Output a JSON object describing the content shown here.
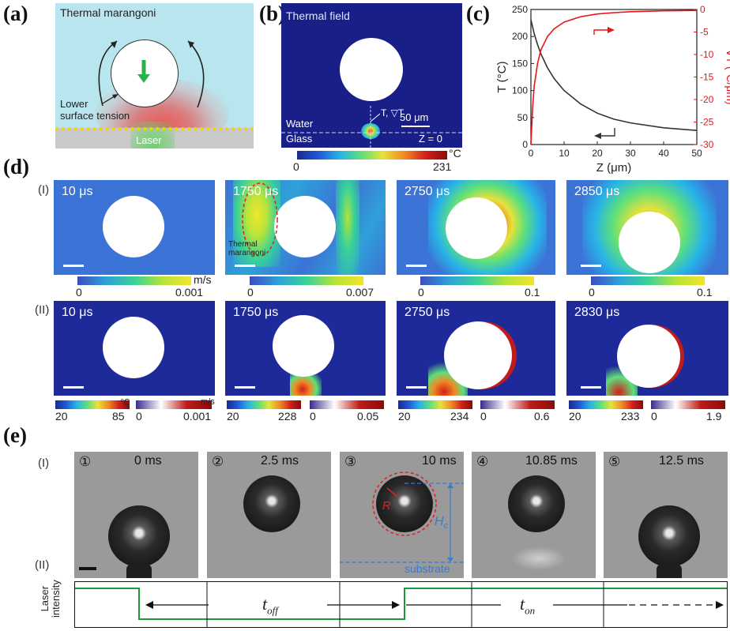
{
  "panel_a": {
    "letter": "(a)",
    "title": "Thermal marangoni",
    "label_surface": "Lower\nsurface tension",
    "label_laser": "Laser"
  },
  "panel_b": {
    "letter": "(b)",
    "title": "Thermal field",
    "label_gradient": "T, ▽T",
    "scale": "50 μm",
    "label_water": "Water",
    "label_glass": "Glass",
    "label_z0": "Z = 0",
    "cbar_min": "0",
    "cbar_max": "231",
    "cbar_unit": "°C"
  },
  "panel_c": {
    "letter": "(c)",
    "chart_data": {
      "type": "line",
      "xlabel": "Z (μm)",
      "ylabel_left": "T (°C)",
      "ylabel_right": "∇T (°C/μm)",
      "xlim": [
        0,
        50
      ],
      "ylim_left": [
        0,
        250
      ],
      "ylim_right": [
        -30,
        0
      ],
      "x_ticks": [
        "0",
        "10",
        "20",
        "30",
        "40",
        "50"
      ],
      "y_ticks_left": [
        "0",
        "50",
        "100",
        "150",
        "200",
        "250"
      ],
      "y_ticks_right": [
        "0",
        "-5",
        "-10",
        "-15",
        "-20",
        "-25",
        "-30"
      ],
      "series": [
        {
          "axis": "left",
          "color": "#333333",
          "x": [
            0,
            1,
            2,
            3,
            5,
            7,
            10,
            15,
            20,
            25,
            30,
            40,
            50
          ],
          "y": [
            231,
            205,
            185,
            168,
            142,
            122,
            100,
            75,
            58,
            47,
            40,
            31,
            26
          ]
        },
        {
          "axis": "right",
          "color": "#e8141a",
          "x": [
            0,
            0.5,
            1,
            2,
            3,
            5,
            7,
            10,
            15,
            20,
            25,
            30,
            40,
            50
          ],
          "y": [
            -30,
            -22,
            -17,
            -12,
            -9,
            -6,
            -4.3,
            -2.8,
            -1.6,
            -1.0,
            -0.7,
            -0.5,
            -0.3,
            -0.2
          ]
        }
      ]
    }
  },
  "panel_d": {
    "letter": "(d)",
    "row1": {
      "label": "(I)",
      "times": [
        "10 μs",
        "1750 μs",
        "2750 μs",
        "2850 μs"
      ],
      "annotation": "Thermal\nmarangoni",
      "cbars": [
        {
          "min": "0",
          "max": "0.001",
          "unit": "m/s"
        },
        {
          "min": "0",
          "max": "0.007"
        },
        {
          "min": "0",
          "max": "0.1"
        },
        {
          "min": "0",
          "max": "0.1"
        }
      ]
    },
    "row2": {
      "label": "(II)",
      "times": [
        "10 μs",
        "1750 μs",
        "2750 μs",
        "2830 μs"
      ],
      "unit_temp": "℃",
      "unit_vel": "m/s",
      "cbars": [
        {
          "tmin": "20",
          "tmax": "85",
          "vmin": "0",
          "vmax": "0.001"
        },
        {
          "tmin": "20",
          "tmax": "228",
          "vmin": "0",
          "vmax": "0.05"
        },
        {
          "tmin": "20",
          "tmax": "234",
          "vmin": "0",
          "vmax": "0.6"
        },
        {
          "tmin": "20",
          "tmax": "233",
          "vmin": "0",
          "vmax": "1.9"
        }
      ]
    }
  },
  "panel_e": {
    "letter": "(e)",
    "row1_label": "(I)",
    "row2_label": "(II)",
    "frames": [
      {
        "num": "①",
        "time": "0 ms"
      },
      {
        "num": "②",
        "time": "2.5 ms"
      },
      {
        "num": "③",
        "time": "10 ms"
      },
      {
        "num": "④",
        "time": "10.85 ms"
      },
      {
        "num": "⑤",
        "time": "12.5 ms"
      }
    ],
    "label_R": "R",
    "label_Hc": "H",
    "label_Hc_sub": "c",
    "label_substrate": "substrate",
    "laser_ylabel": "Laser\nintensity",
    "t_off": "t",
    "t_off_sub": "off",
    "t_on": "t",
    "t_on_sub": "on",
    "colors": {
      "laser_line": "#1a9a3a",
      "annotation_red": "#e02020",
      "annotation_blue": "#3a7ad0"
    }
  }
}
